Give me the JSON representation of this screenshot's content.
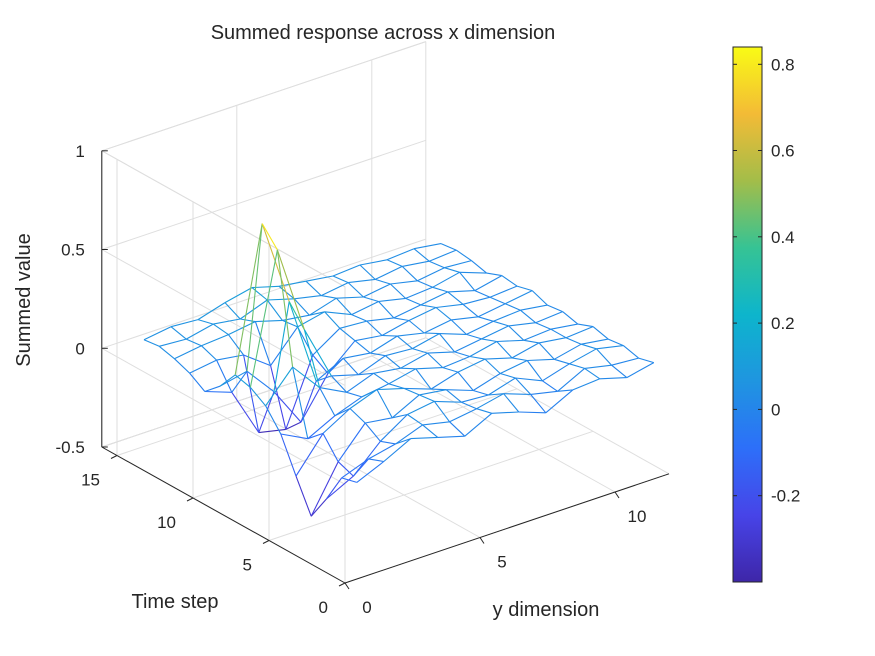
{
  "chart_data": {
    "type": "mesh3d",
    "title": "Summed response across x dimension",
    "xlabel": "y dimension",
    "ylabel": "Time step",
    "zlabel": "Summed value",
    "x_ticks": [
      0,
      5,
      10
    ],
    "y_ticks": [
      0,
      5,
      10,
      15
    ],
    "z_ticks": [
      -0.5,
      0,
      0.5,
      1
    ],
    "z_tick_labels": [
      "-0.5",
      "0",
      "0.5",
      "1"
    ],
    "xlim": [
      0,
      12
    ],
    "ylim": [
      0,
      16
    ],
    "zlim": [
      -0.5,
      1
    ],
    "grid": true,
    "colorbar": {
      "colormap": "parula",
      "limits": [
        -0.4,
        0.84
      ],
      "ticks": [
        -0.2,
        0,
        0.2,
        0.4,
        0.6,
        0.8
      ],
      "tick_labels": [
        "-0.2",
        "0",
        "0.2",
        "0.4",
        "0.6",
        "0.8"
      ]
    },
    "mesh_y": [
      1,
      2,
      3,
      4,
      5,
      6,
      7,
      8,
      9,
      10,
      11,
      12,
      13,
      14,
      15
    ],
    "mesh_x": [
      1,
      2,
      3,
      4,
      5,
      6,
      7,
      8,
      9,
      10,
      11,
      12
    ],
    "z": [
      [
        -0.08,
        -0.02,
        0.05,
        0.01,
        -0.03,
        0.04,
        0.0,
        -0.05,
        0.02,
        0.03,
        -0.01,
        0.02
      ],
      [
        -0.1,
        -0.05,
        -0.02,
        0.03,
        0.0,
        0.02,
        0.05,
        0.0,
        -0.03,
        0.04,
        0.01,
        0.0
      ],
      [
        -0.25,
        -0.18,
        -0.05,
        0.04,
        0.06,
        0.01,
        0.0,
        0.04,
        -0.02,
        0.02,
        0.05,
        0.02
      ],
      [
        -0.38,
        -0.15,
        0.0,
        -0.02,
        0.05,
        0.03,
        -0.02,
        0.02,
        0.04,
        0.0,
        0.03,
        0.01
      ],
      [
        -0.22,
        -0.05,
        0.03,
        0.08,
        0.04,
        -0.01,
        0.03,
        0.05,
        0.01,
        0.04,
        0.02,
        0.03
      ],
      [
        -0.05,
        -0.12,
        -0.05,
        0.0,
        0.02,
        0.05,
        0.01,
        0.02,
        0.05,
        0.01,
        0.02,
        0.0
      ],
      [
        0.05,
        0.2,
        0.05,
        -0.02,
        0.03,
        0.01,
        0.04,
        0.0,
        0.02,
        0.04,
        0.01,
        0.02
      ],
      [
        0.1,
        0.75,
        0.3,
        0.02,
        -0.02,
        0.03,
        0.02,
        0.05,
        0.0,
        0.02,
        0.03,
        0.01
      ],
      [
        0.12,
        0.84,
        0.4,
        -0.05,
        0.02,
        0.0,
        0.04,
        0.01,
        0.03,
        0.0,
        0.02,
        0.04
      ],
      [
        0.02,
        0.05,
        -0.1,
        -0.3,
        -0.1,
        0.02,
        0.0,
        0.03,
        0.05,
        0.02,
        0.01,
        0.02
      ],
      [
        -0.05,
        -0.1,
        -0.35,
        -0.38,
        -0.05,
        0.04,
        0.03,
        0.0,
        0.02,
        0.04,
        0.0,
        0.03
      ],
      [
        0.0,
        0.02,
        0.0,
        -0.1,
        0.05,
        0.08,
        0.02,
        0.04,
        0.01,
        0.02,
        0.05,
        0.0
      ],
      [
        0.03,
        0.05,
        0.06,
        0.08,
        0.04,
        0.02,
        0.06,
        0.02,
        0.04,
        0.01,
        0.03,
        0.02
      ],
      [
        0.05,
        0.04,
        0.07,
        0.05,
        0.1,
        0.06,
        0.03,
        0.05,
        0.02,
        0.04,
        0.02,
        0.03
      ],
      [
        0.04,
        0.06,
        0.05,
        0.09,
        0.12,
        0.08,
        0.06,
        0.04,
        0.05,
        0.03,
        0.04,
        0.02
      ]
    ]
  }
}
